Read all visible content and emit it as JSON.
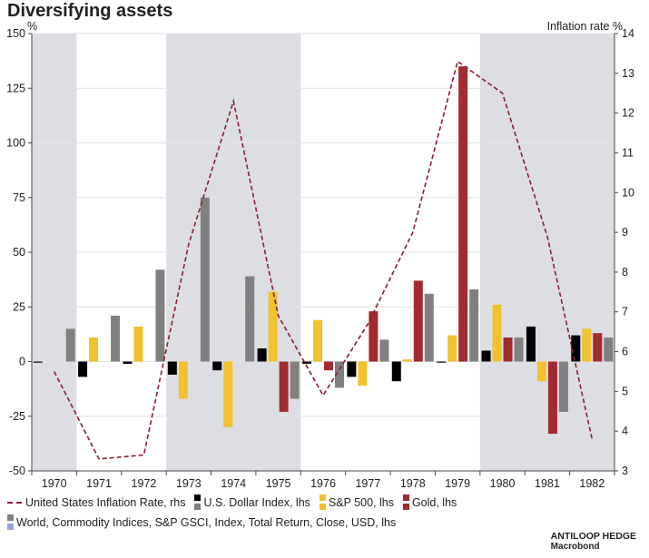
{
  "chart_data": {
    "type": "bar",
    "title": "Diversifying assets",
    "ylabel_left": "%",
    "ylabel_right": "Inflation rate %",
    "ylim_left": [
      -50,
      150
    ],
    "ylim_right": [
      3,
      14
    ],
    "yticks_left": [
      -50,
      -25,
      0,
      25,
      50,
      75,
      100,
      125,
      150
    ],
    "yticks_right": [
      3,
      4,
      5,
      6,
      7,
      8,
      9,
      10,
      11,
      12,
      13,
      14
    ],
    "categories": [
      "1970",
      "1971",
      "1972",
      "1973",
      "1974",
      "1975",
      "1976",
      "1977",
      "1978",
      "1979",
      "1980",
      "1981",
      "1982"
    ],
    "shaded_periods": [
      [
        "1970",
        "1970"
      ],
      [
        "1973",
        "1975"
      ],
      [
        "1980",
        "1982"
      ]
    ],
    "series": [
      {
        "name": "U.S. Dollar Index, lhs",
        "color": "#000000",
        "values": [
          -0.5,
          -7,
          -1,
          -6,
          -4,
          6,
          -1,
          -7,
          -9,
          -0.5,
          5,
          16,
          12
        ]
      },
      {
        "name": "S&P 500, lhs",
        "color": "#f2c12e",
        "values": [
          null,
          11,
          16,
          -17,
          -30,
          32,
          19,
          -11,
          1,
          12,
          26,
          -9,
          15
        ]
      },
      {
        "name": "Gold, lhs",
        "color": "#a12b2f",
        "values": [
          null,
          null,
          null,
          null,
          null,
          -23,
          -4,
          23,
          37,
          135,
          11,
          -33,
          13
        ]
      },
      {
        "name": "World, Commodity Indices, S&P GSCI, Index, Total Return, Close, USD, lhs",
        "color": "#808080",
        "values": [
          15,
          21,
          42,
          75,
          39,
          -17,
          -12,
          10,
          31,
          33,
          11,
          -23,
          11
        ]
      }
    ],
    "line_series": {
      "name": "United States Inflation Rate, rhs",
      "color": "#8b1a2b",
      "axis": "right",
      "values": [
        5.5,
        3.3,
        3.4,
        8.7,
        12.3,
        6.9,
        4.9,
        6.7,
        9.0,
        13.3,
        12.5,
        8.9,
        3.8
      ]
    }
  },
  "legend": {
    "inflation": "United States Inflation Rate, rhs",
    "dollar": "U.S. Dollar Index, lhs",
    "sp500": "S&P 500, lhs",
    "gold": "Gold, lhs",
    "commodity": "World, Commodity Indices, S&P GSCI, Index, Total Return, Close, USD, lhs"
  },
  "source": {
    "line1": "ANTILOOP HEDGE",
    "line2": "Macrobond"
  },
  "colors": {
    "shade": "#dcdee3",
    "grid": "#e4e4e4",
    "axis": "#444444",
    "legend_extra_swatch": "#9aa4d6"
  }
}
